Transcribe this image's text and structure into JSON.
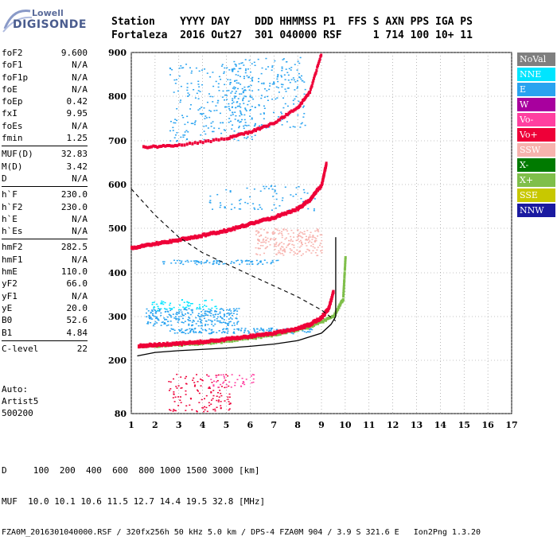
{
  "logo": {
    "line1": "Lowell",
    "line2": "DIGISONDE"
  },
  "header": {
    "row1": "Station    YYYY DAY    DDD HHMMSS P1  FFS S AXN PPS IGA PS",
    "row2": "Fortaleza  2016 Out27  301 040000 RSF     1 714 100 10+ 11"
  },
  "params": [
    {
      "k": "foF2",
      "v": "9.600"
    },
    {
      "k": "foF1",
      "v": "N/A"
    },
    {
      "k": "foF1p",
      "v": "N/A"
    },
    {
      "k": "foE",
      "v": "N/A"
    },
    {
      "k": "foEp",
      "v": "0.42"
    },
    {
      "k": "fxI",
      "v": "9.95"
    },
    {
      "k": "foEs",
      "v": "N/A"
    },
    {
      "k": "fmin",
      "v": "1.25"
    },
    {
      "k": "MUF(D)",
      "v": "32.83"
    },
    {
      "k": "M(D)",
      "v": "3.42"
    },
    {
      "k": "D",
      "v": "N/A"
    },
    {
      "k": "h`F",
      "v": "230.0"
    },
    {
      "k": "h`F2",
      "v": "230.0"
    },
    {
      "k": "h`E",
      "v": "N/A"
    },
    {
      "k": "h`Es",
      "v": "N/A"
    },
    {
      "k": "hmF2",
      "v": "282.5"
    },
    {
      "k": "hmF1",
      "v": "N/A"
    },
    {
      "k": "hmE",
      "v": "110.0"
    },
    {
      "k": "yF2",
      "v": "66.0"
    },
    {
      "k": "yF1",
      "v": "N/A"
    },
    {
      "k": "yE",
      "v": "20.0"
    },
    {
      "k": "B0",
      "v": "52.6"
    },
    {
      "k": "B1",
      "v": "4.84"
    },
    {
      "k": "C-level",
      "v": "22"
    }
  ],
  "auto": [
    "Auto:",
    "Artist5",
    "500200"
  ],
  "legend": [
    {
      "label": "NoVal",
      "color": "#7f7f7f"
    },
    {
      "label": "NNE",
      "color": "#00e5ff"
    },
    {
      "label": "E",
      "color": "#29a3f0"
    },
    {
      "label": "W",
      "color": "#a8009e"
    },
    {
      "label": "Vo-",
      "color": "#ff3fa0"
    },
    {
      "label": "Vo+",
      "color": "#ee0038"
    },
    {
      "label": "SSW",
      "color": "#f7b3ae"
    },
    {
      "label": "X-",
      "color": "#007a00"
    },
    {
      "label": "X+",
      "color": "#7fbf4a"
    },
    {
      "label": "SSE",
      "color": "#c8c800"
    },
    {
      "label": "NNW",
      "color": "#1a1aa0"
    }
  ],
  "footer": {
    "dist_line": "D     100  200  400  600  800 1000 1500 3000 [km]",
    "muf_line": "MUF  10.0 10.1 10.6 11.5 12.7 14.4 19.5 32.8 [MHz]",
    "file_line": "FZA0M_2016301040000.RSF / 320fx256h 50 kHz 5.0 km / DPS-4 FZA0M 904 / 3.9 S 321.6 E   Ion2Png 1.3.20"
  },
  "chart_data": {
    "type": "scatter",
    "xlim": [
      1,
      17
    ],
    "ylim": [
      80,
      900
    ],
    "xticks": [
      1,
      2,
      3,
      4,
      5,
      6,
      7,
      8,
      9,
      10,
      11,
      12,
      13,
      14,
      15,
      16,
      17
    ],
    "yticks": [
      80,
      200,
      300,
      400,
      500,
      600,
      700,
      800,
      900
    ],
    "grid": "dotted",
    "traces": [
      {
        "name": "F2 O-trace",
        "color": "#ee0038",
        "x": [
          1.3,
          2,
          3,
          4,
          5,
          6,
          7,
          8,
          8.5,
          9,
          9.3,
          9.5
        ],
        "y": [
          233,
          235,
          238,
          242,
          248,
          255,
          262,
          272,
          282,
          298,
          320,
          360
        ]
      },
      {
        "name": "F2 X-trace",
        "color": "#7fbf4a",
        "x": [
          1.5,
          3,
          5,
          7,
          8.5,
          9.5,
          9.9,
          10.0
        ],
        "y": [
          232,
          235,
          243,
          258,
          276,
          300,
          340,
          440
        ]
      },
      {
        "name": "multiple 2F",
        "color": "#ee0038",
        "x": [
          1,
          2,
          3,
          4,
          5,
          6,
          7,
          8,
          8.5,
          9,
          9.2
        ],
        "y": [
          455,
          465,
          474,
          484,
          495,
          510,
          525,
          545,
          565,
          600,
          650
        ]
      },
      {
        "name": "multiple 3F",
        "color": "#ee0038",
        "x": [
          1.5,
          3,
          5,
          6,
          7,
          8,
          8.5,
          9
        ],
        "y": [
          685,
          690,
          705,
          720,
          740,
          775,
          810,
          900
        ]
      },
      {
        "name": "true-height profile",
        "color": "#000000",
        "x": [
          1.25,
          2,
          3,
          4,
          5,
          6,
          7,
          8,
          9,
          9.4,
          9.6
        ],
        "y": [
          210,
          218,
          222,
          225,
          228,
          232,
          237,
          245,
          262,
          282,
          300
        ]
      },
      {
        "name": "model profile (dashed)",
        "color": "#000000",
        "x": [
          1,
          1.5,
          2,
          3,
          4,
          5,
          6,
          7,
          8,
          9,
          9.6
        ],
        "y": [
          590,
          560,
          530,
          480,
          445,
          420,
          395,
          370,
          345,
          315,
          290
        ]
      }
    ]
  }
}
